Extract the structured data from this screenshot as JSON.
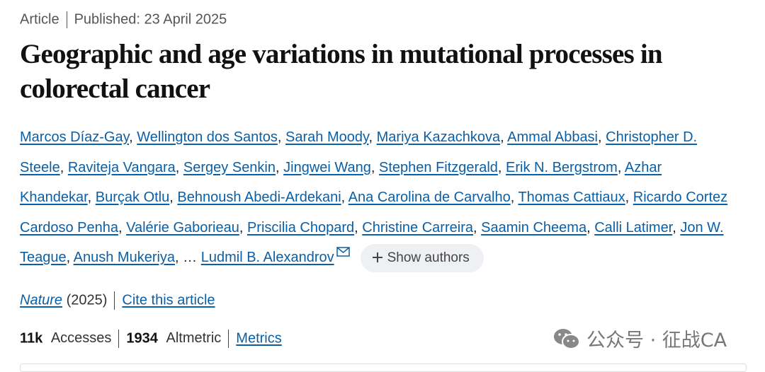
{
  "header": {
    "type": "Article",
    "published": "Published: 23 April 2025"
  },
  "title": "Geographic and age variations in mutational processes in colorectal cancer",
  "authors": {
    "names": [
      "Marcos Díaz-Gay",
      "Wellington dos Santos",
      "Sarah Moody",
      "Mariya Kazachkova",
      "Ammal Abbasi",
      "Christopher D. Steele",
      "Raviteja Vangara",
      "Sergey Senkin",
      "Jingwei Wang",
      "Stephen Fitzgerald",
      "Erik N. Bergstrom",
      "Azhar Khandekar",
      "Burçak Otlu",
      "Behnoush Abedi-Ardekani",
      "Ana Carolina de Carvalho",
      "Thomas Cattiaux",
      "Ricardo Cortez Cardoso Penha",
      "Valérie Gaborieau",
      "Priscilia Chopard",
      "Christine Carreira",
      "Saamin Cheema",
      "Calli Latimer",
      "Jon W. Teague",
      "Anush Mukeriya"
    ],
    "separator": ",",
    "ellipsis": "…",
    "last": "Ludmil B. Alexandrov",
    "show_button": "Show authors"
  },
  "citation": {
    "journal": "Nature",
    "year": "(2025)",
    "cite": "Cite this article"
  },
  "metrics": {
    "items": [
      {
        "value": "11k",
        "label": "Accesses"
      },
      {
        "value": "1934",
        "label": "Altmetric"
      }
    ],
    "link": "Metrics"
  },
  "watermark": "公众号 · 征战CA"
}
